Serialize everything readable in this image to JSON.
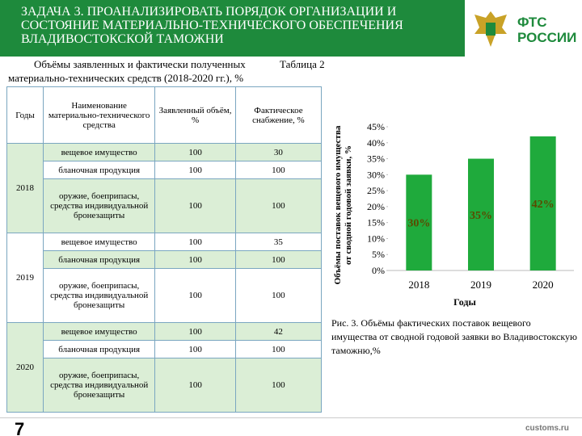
{
  "header": {
    "title": "ЗАДАЧА 3. ПРОАНАЛИЗИРОВАТЬ ПОРЯДОК ОРГАНИЗАЦИИ И СОСТОЯНИЕ МАТЕРИАЛЬНО-ТЕХНИЧЕСКОГО ОБЕСПЕЧЕНИЯ ВЛАДИВОСТОКСКОЙ ТАМОЖНИ",
    "logo": [
      "ФТС",
      "РОССИИ"
    ]
  },
  "table_caption": {
    "text": "Объёмы заявленных и фактически полученных",
    "label": "Таблица 2",
    "text2": "материально-технических средств (2018-2020 гг.), %"
  },
  "table": {
    "header": [
      "Годы",
      "Наименование материально-технического средства",
      "Заявленный объём, %",
      "Фактическое снабжение, %"
    ],
    "groups": [
      {
        "year": "2018",
        "rows": [
          [
            "вещевое имущество",
            100,
            30
          ],
          [
            "бланочная продукция",
            100,
            100
          ],
          [
            "оружие, боеприпасы, средства индивидуальной бронезащиты",
            100,
            100
          ]
        ]
      },
      {
        "year": "2019",
        "rows": [
          [
            "вещевое имущество",
            100,
            35
          ],
          [
            "бланочная продукция",
            100,
            100
          ],
          [
            "оружие, боеприпасы, средства индивидуальной бронезащиты",
            100,
            100
          ]
        ]
      },
      {
        "year": "2020",
        "rows": [
          [
            "вещевое имущество",
            100,
            42
          ],
          [
            "бланочная продукция",
            100,
            100
          ],
          [
            "оружие, боеприпасы, средства индивидуальной бронезащиты",
            100,
            100
          ]
        ]
      }
    ]
  },
  "chart_data": {
    "type": "bar",
    "categories": [
      "2018",
      "2019",
      "2020"
    ],
    "values": [
      30,
      35,
      42
    ],
    "value_labels": [
      "30%",
      "35%",
      "42%"
    ],
    "color": "#1faa3c",
    "ylim": [
      0,
      45
    ],
    "yticks": [
      {
        "value": 0,
        "label": "0%"
      },
      {
        "value": 5,
        "label": "5%"
      },
      {
        "value": 10,
        "label": "10%"
      },
      {
        "value": 15,
        "label": "15%"
      },
      {
        "value": 20,
        "label": "20%"
      },
      {
        "value": 25,
        "label": "25%"
      },
      {
        "value": 30,
        "label": "30%"
      },
      {
        "value": 35,
        "label": "35%"
      },
      {
        "value": 40,
        "label": "40%"
      },
      {
        "value": 45,
        "label": "45%"
      }
    ],
    "y_label": "Объёмы поставок вещевого имущества от сводной годовой заявки, %",
    "x_label": "Годы"
  },
  "figure_caption": "Рис. 3. Объёмы фактических поставок вещевого имущества от сводной годовой заявки во Владивостокскую таможню,%",
  "footer": {
    "page": "7",
    "site": "customs.ru"
  }
}
